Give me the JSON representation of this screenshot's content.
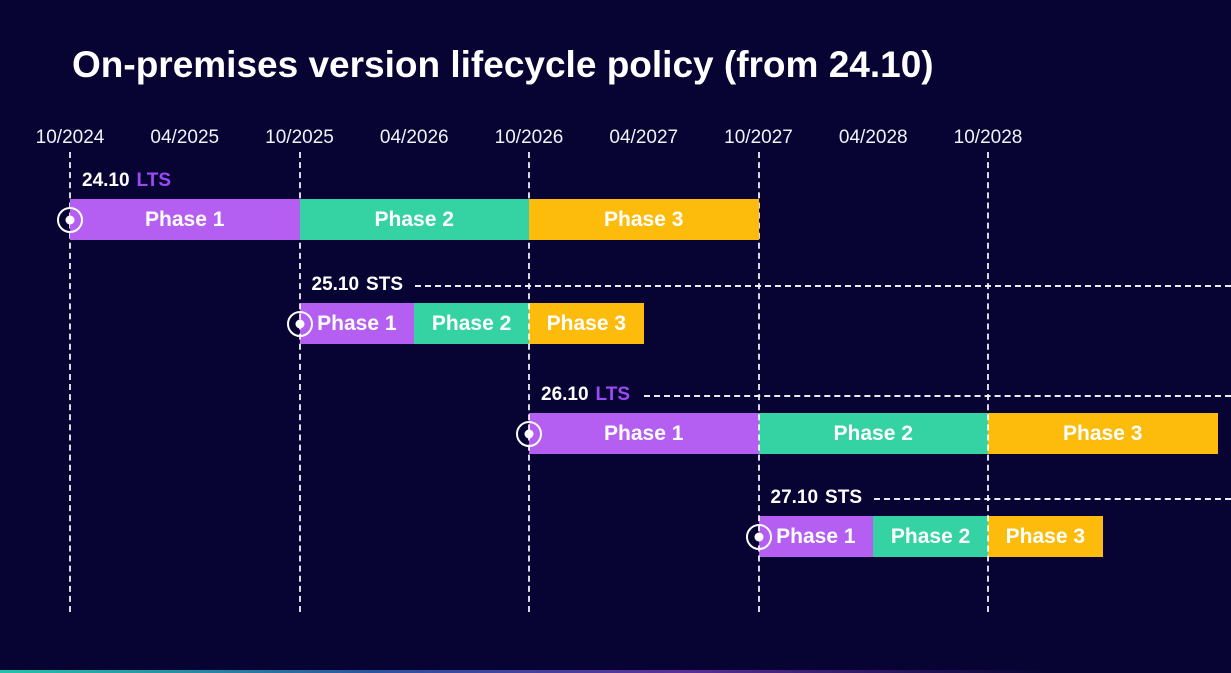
{
  "title": "On-premises version lifecycle policy (from 24.10)",
  "colors": {
    "background": "#070434",
    "purple": "#b45ef2",
    "teal": "#35d3a3",
    "yellow": "#fdbb0c",
    "lts_text": "#9b4af5",
    "white": "#ffffff"
  },
  "axis": {
    "ticks": [
      {
        "label": "10/2024",
        "month": 0
      },
      {
        "label": "04/2025",
        "month": 6
      },
      {
        "label": "10/2025",
        "month": 12
      },
      {
        "label": "04/2026",
        "month": 18
      },
      {
        "label": "10/2026",
        "month": 24
      },
      {
        "label": "04/2027",
        "month": 30
      },
      {
        "label": "10/2027",
        "month": 36
      },
      {
        "label": "04/2028",
        "month": 42
      },
      {
        "label": "10/2028",
        "month": 48
      }
    ],
    "gridline_months": [
      0,
      12,
      24,
      36,
      48
    ]
  },
  "rows": [
    {
      "version": "24.10",
      "channel": "LTS",
      "channel_color": "lts_text",
      "start_month": 0,
      "leader_line": false,
      "phases": [
        {
          "label": "Phase 1",
          "start_month": 0,
          "end_month": 12,
          "color": "purple"
        },
        {
          "label": "Phase 2",
          "start_month": 12,
          "end_month": 24,
          "color": "teal"
        },
        {
          "label": "Phase 3",
          "start_month": 24,
          "end_month": 36,
          "color": "yellow"
        }
      ]
    },
    {
      "version": "25.10",
      "channel": "STS",
      "channel_color": "white",
      "start_month": 12,
      "leader_line": true,
      "phases": [
        {
          "label": "Phase 1",
          "start_month": 12,
          "end_month": 18,
          "color": "purple"
        },
        {
          "label": "Phase 2",
          "start_month": 18,
          "end_month": 24,
          "color": "teal"
        },
        {
          "label": "Phase 3",
          "start_month": 24,
          "end_month": 30,
          "color": "yellow"
        }
      ]
    },
    {
      "version": "26.10",
      "channel": "LTS",
      "channel_color": "lts_text",
      "start_month": 24,
      "leader_line": true,
      "phases": [
        {
          "label": "Phase 1",
          "start_month": 24,
          "end_month": 36,
          "color": "purple"
        },
        {
          "label": "Phase 2",
          "start_month": 36,
          "end_month": 48,
          "color": "teal"
        },
        {
          "label": "Phase 3",
          "start_month": 48,
          "end_month": 60,
          "color": "yellow"
        }
      ]
    },
    {
      "version": "27.10",
      "channel": "STS",
      "channel_color": "white",
      "start_month": 36,
      "leader_line": true,
      "phases": [
        {
          "label": "Phase 1",
          "start_month": 36,
          "end_month": 42,
          "color": "purple"
        },
        {
          "label": "Phase 2",
          "start_month": 42,
          "end_month": 48,
          "color": "teal"
        },
        {
          "label": "Phase 3",
          "start_month": 48,
          "end_month": 54,
          "color": "yellow"
        }
      ]
    }
  ],
  "chart_data": {
    "type": "bar",
    "variant": "gantt-timeline",
    "title": "On-premises version lifecycle policy (from 24.10)",
    "x_axis": {
      "unit": "month/year",
      "tick_labels": [
        "10/2024",
        "04/2025",
        "10/2025",
        "04/2026",
        "10/2026",
        "04/2027",
        "10/2027",
        "04/2028",
        "10/2028"
      ],
      "dashed_gridlines_at": [
        "10/2024",
        "10/2025",
        "10/2026",
        "10/2027",
        "10/2028"
      ]
    },
    "legend_position": "none",
    "grid": "vertical-dashed",
    "series": [
      {
        "name": "24.10 LTS",
        "phases": [
          {
            "phase": "Phase 1",
            "start": "10/2024",
            "end": "10/2025"
          },
          {
            "phase": "Phase 2",
            "start": "10/2025",
            "end": "10/2026"
          },
          {
            "phase": "Phase 3",
            "start": "10/2026",
            "end": "10/2027"
          }
        ]
      },
      {
        "name": "25.10 STS",
        "phases": [
          {
            "phase": "Phase 1",
            "start": "10/2025",
            "end": "04/2026"
          },
          {
            "phase": "Phase 2",
            "start": "04/2026",
            "end": "10/2026"
          },
          {
            "phase": "Phase 3",
            "start": "10/2026",
            "end": "04/2027"
          }
        ]
      },
      {
        "name": "26.10 LTS",
        "phases": [
          {
            "phase": "Phase 1",
            "start": "10/2026",
            "end": "10/2027"
          },
          {
            "phase": "Phase 2",
            "start": "10/2027",
            "end": "10/2028"
          },
          {
            "phase": "Phase 3",
            "start": "10/2028",
            "end": "10/2029"
          }
        ]
      },
      {
        "name": "27.10 STS",
        "phases": [
          {
            "phase": "Phase 1",
            "start": "10/2027",
            "end": "04/2028"
          },
          {
            "phase": "Phase 2",
            "start": "04/2028",
            "end": "10/2028"
          },
          {
            "phase": "Phase 3",
            "start": "10/2028",
            "end": "04/2029"
          }
        ]
      }
    ],
    "phase_colors": {
      "Phase 1": "#b45ef2",
      "Phase 2": "#35d3a3",
      "Phase 3": "#fdbb0c"
    }
  }
}
